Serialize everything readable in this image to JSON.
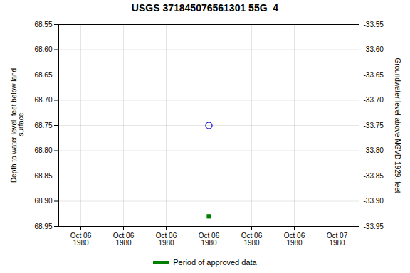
{
  "chart_data": {
    "type": "scatter",
    "title": "USGS 371845076561301 55G  4",
    "ylabel": "Depth to water level, feet below land\n surface",
    "y2label": "Groundwater level above NGVD 1929, feet",
    "categories": [
      "Oct 06\n1980",
      "Oct 06\n1980",
      "Oct 06\n1980",
      "Oct 06\n1980",
      "Oct 06\n1980",
      "Oct 06\n1980",
      "Oct 07\n1980"
    ],
    "series": [
      {
        "color": "#0000cc",
        "marker": "open_circle",
        "values": [
          null,
          null,
          null,
          68.75,
          null,
          null,
          null
        ]
      },
      {
        "name": "Period of approved data",
        "color": "#008000",
        "marker": "square",
        "values": [
          null,
          null,
          null,
          68.93,
          null,
          null,
          null
        ]
      }
    ],
    "ylim": [
      68.95,
      68.55
    ],
    "yticks": [
      68.55,
      {
        "value": 68.6,
        "label": "68.60"
      },
      68.65,
      {
        "value": 68.7,
        "label": "68.70"
      },
      68.75,
      {
        "value": 68.8,
        "label": "68.80"
      },
      68.85,
      {
        "value": 68.9,
        "label": "68.90"
      },
      68.95
    ],
    "y2lim": [
      -33.95,
      -33.55
    ],
    "y2ticks": [
      -33.55,
      {
        "value": -33.6,
        "label": "-33.60"
      },
      -33.65,
      {
        "value": -33.7,
        "label": "-33.70"
      },
      -33.75,
      {
        "value": -33.8,
        "label": "-33.80"
      },
      -33.85,
      {
        "value": -33.9,
        "label": "-33.90"
      },
      -33.95
    ],
    "grid": true,
    "legend": "bottom"
  }
}
